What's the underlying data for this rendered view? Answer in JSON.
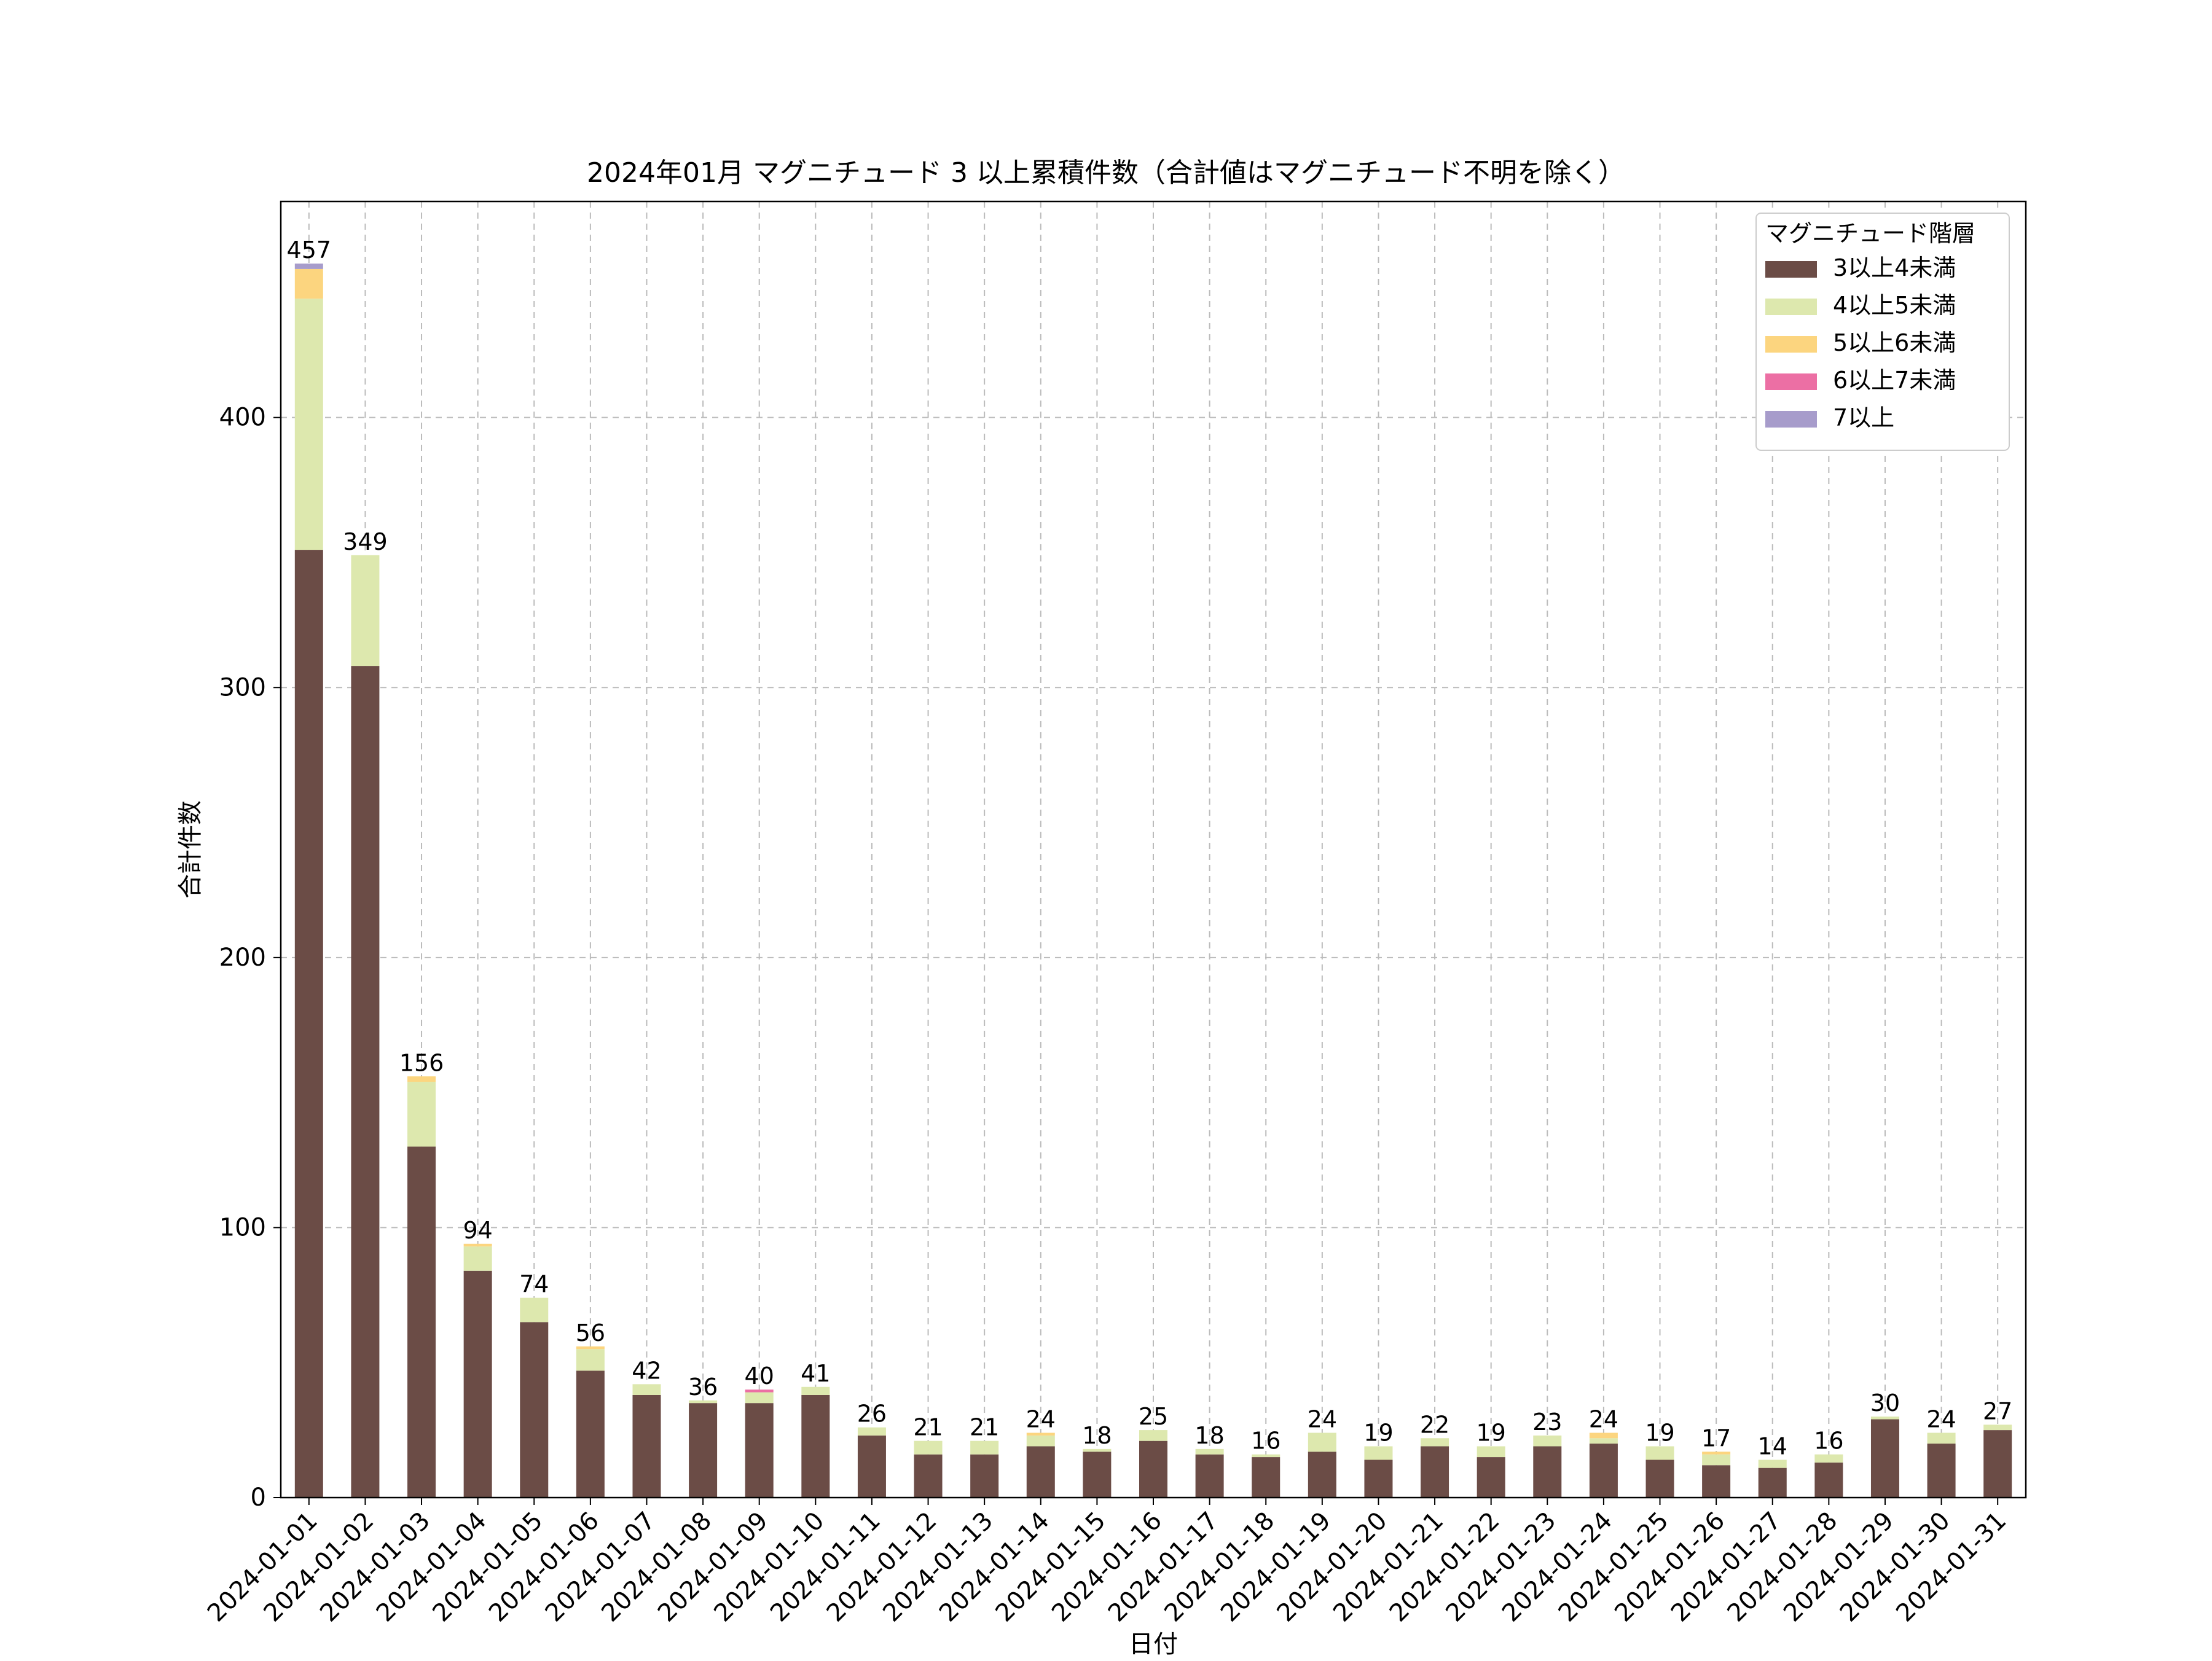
{
  "chart_data": {
    "type": "bar",
    "stacked": true,
    "title": "2024年01月 マグニチュード 3 以上累積件数（合計値はマグニチュード不明を除く）",
    "xlabel": "日付",
    "ylabel": "合計件数",
    "ylim": [
      0,
      480
    ],
    "yticks": [
      0,
      100,
      200,
      300,
      400
    ],
    "grid": true,
    "legend": {
      "title": "マグニチュード階層",
      "placement": "top-right"
    },
    "categories": [
      "2024-01-01",
      "2024-01-02",
      "2024-01-03",
      "2024-01-04",
      "2024-01-05",
      "2024-01-06",
      "2024-01-07",
      "2024-01-08",
      "2024-01-09",
      "2024-01-10",
      "2024-01-11",
      "2024-01-12",
      "2024-01-13",
      "2024-01-14",
      "2024-01-15",
      "2024-01-16",
      "2024-01-17",
      "2024-01-18",
      "2024-01-19",
      "2024-01-20",
      "2024-01-21",
      "2024-01-22",
      "2024-01-23",
      "2024-01-24",
      "2024-01-25",
      "2024-01-26",
      "2024-01-27",
      "2024-01-28",
      "2024-01-29",
      "2024-01-30",
      "2024-01-31"
    ],
    "totals": [
      457,
      349,
      156,
      94,
      74,
      56,
      42,
      36,
      40,
      41,
      26,
      21,
      21,
      24,
      18,
      25,
      18,
      16,
      24,
      19,
      22,
      19,
      23,
      24,
      19,
      17,
      14,
      16,
      30,
      24,
      27
    ],
    "series": [
      {
        "name": "3以上4未満",
        "color": "#6b4c46",
        "values": [
          351,
          308,
          130,
          84,
          65,
          47,
          38,
          35,
          35,
          38,
          23,
          16,
          16,
          19,
          17,
          21,
          16,
          15,
          17,
          14,
          19,
          15,
          19,
          20,
          14,
          12,
          11,
          13,
          29,
          20,
          25
        ]
      },
      {
        "name": "4以上5未満",
        "color": "#dde8ae",
        "values": [
          93,
          41,
          24,
          9,
          9,
          8,
          4,
          1,
          4,
          3,
          3,
          5,
          5,
          4,
          1,
          4,
          2,
          1,
          7,
          5,
          3,
          4,
          4,
          2,
          5,
          4,
          3,
          3,
          1,
          4,
          2
        ]
      },
      {
        "name": "5以上6未満",
        "color": "#fcd57f",
        "values": [
          11,
          0,
          2,
          1,
          0,
          1,
          0,
          0,
          0,
          0,
          0,
          0,
          0,
          1,
          0,
          0,
          0,
          0,
          0,
          0,
          0,
          0,
          0,
          2,
          0,
          1,
          0,
          0,
          0,
          0,
          0
        ]
      },
      {
        "name": "6以上7未満",
        "color": "#ec6fa4",
        "values": [
          0,
          0,
          0,
          0,
          0,
          0,
          0,
          0,
          1,
          0,
          0,
          0,
          0,
          0,
          0,
          0,
          0,
          0,
          0,
          0,
          0,
          0,
          0,
          0,
          0,
          0,
          0,
          0,
          0,
          0,
          0
        ]
      },
      {
        "name": "7以上",
        "color": "#a79ccb",
        "values": [
          2,
          0,
          0,
          0,
          0,
          0,
          0,
          0,
          0,
          0,
          0,
          0,
          0,
          0,
          0,
          0,
          0,
          0,
          0,
          0,
          0,
          0,
          0,
          0,
          0,
          0,
          0,
          0,
          0,
          0,
          0
        ]
      }
    ]
  }
}
